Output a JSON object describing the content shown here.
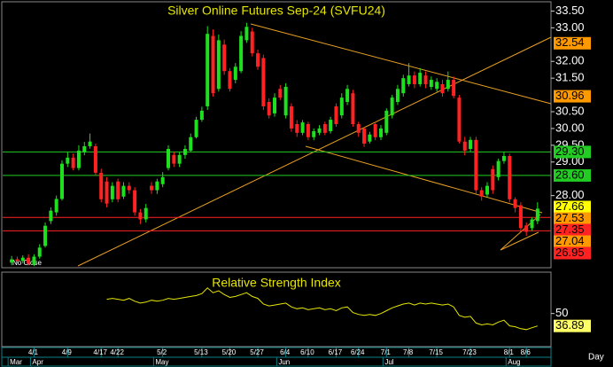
{
  "chart_data": [
    {
      "type": "candlestick",
      "title": "Silver Online Futures Sep-24 (SVFU24)",
      "status": "No Close",
      "x_label": "Day",
      "categories": [
        null,
        null,
        null,
        null,
        "4/1",
        null,
        null,
        null,
        null,
        null,
        "4/9",
        null,
        null,
        null,
        null,
        null,
        "4/17",
        null,
        null,
        "4/22",
        null,
        null,
        null,
        null,
        null,
        null,
        null,
        "5/2",
        null,
        null,
        null,
        null,
        null,
        null,
        "5/13",
        null,
        null,
        null,
        null,
        "5/20",
        null,
        null,
        null,
        null,
        "5/27",
        null,
        null,
        null,
        null,
        "6/4",
        null,
        null,
        null,
        "6/10",
        null,
        null,
        null,
        null,
        "6/17",
        null,
        null,
        null,
        "6/24",
        null,
        null,
        null,
        null,
        "7/1",
        null,
        null,
        null,
        "7/8",
        null,
        null,
        null,
        null,
        "7/15",
        null,
        null,
        null,
        null,
        null,
        "7/23",
        null,
        null,
        null,
        null,
        null,
        null,
        "8/1",
        null,
        null,
        "8/6",
        null,
        null
      ],
      "months": [
        "Mar",
        null,
        null,
        null,
        "Apr",
        null,
        null,
        null,
        null,
        null,
        null,
        null,
        null,
        null,
        null,
        null,
        null,
        null,
        null,
        null,
        null,
        null,
        null,
        null,
        null,
        null,
        "May",
        null,
        null,
        null,
        null,
        null,
        null,
        null,
        null,
        null,
        null,
        null,
        null,
        null,
        null,
        null,
        null,
        null,
        null,
        null,
        null,
        null,
        "Jun",
        null,
        null,
        null,
        null,
        null,
        null,
        null,
        null,
        null,
        null,
        null,
        null,
        null,
        null,
        null,
        null,
        null,
        null,
        "Jul",
        null,
        null,
        null,
        null,
        null,
        null,
        null,
        null,
        null,
        null,
        null,
        null,
        null,
        null,
        null,
        null,
        null,
        null,
        null,
        null,
        null,
        "Aug",
        null,
        null,
        null,
        null,
        null
      ],
      "open": [
        26.0,
        26.1,
        26.05,
        26.15,
        25.95,
        26.18,
        26.5,
        27.24,
        27.5,
        27.9,
        28.95,
        29.13,
        28.82,
        29.29,
        29.47,
        29.47,
        28.68,
        28.42,
        27.89,
        28.42,
        27.97,
        28.29,
        28.16,
        27.5,
        27.29,
        28.29,
        28.16,
        28.34,
        28.82,
        29.21,
        28.95,
        29.21,
        29.34,
        29.74,
        30.26,
        30.66,
        32.76,
        31.18,
        32.5,
        31.71,
        31.45,
        31.71,
        32.63,
        32.89,
        32.24,
        32.1,
        30.79,
        30.45,
        31.18,
        30.39,
        30.66,
        30.13,
        29.87,
        30.13,
        29.74,
        29.87,
        30.13,
        29.92,
        30.66,
        30.39,
        30.79,
        31.05,
        30.13,
        30.0,
        29.61,
        30.13,
        29.74,
        29.87,
        30.39,
        30.79,
        31.05,
        31.32,
        31.58,
        31.32,
        31.58,
        31.24,
        31.18,
        31.32,
        31.18,
        31.45,
        30.92,
        29.61,
        29.39,
        29.66,
        28.16,
        28.03,
        28.79,
        28.55,
        29.03,
        29.18,
        27.89,
        27.71,
        27.11,
        27.03,
        27.24
      ],
      "high": [
        26.2,
        26.18,
        26.22,
        26.25,
        26.25,
        26.55,
        27.2,
        27.65,
        28.0,
        29.05,
        29.3,
        29.25,
        29.5,
        29.6,
        29.85,
        29.55,
        28.8,
        28.55,
        28.4,
        28.5,
        28.4,
        28.4,
        28.25,
        27.6,
        27.75,
        28.4,
        28.5,
        28.7,
        29.5,
        29.3,
        29.3,
        29.5,
        29.85,
        30.35,
        30.65,
        33.05,
        32.95,
        32.8,
        32.65,
        31.8,
        31.95,
        32.9,
        33.15,
        33.0,
        32.35,
        32.2,
        30.9,
        31.05,
        31.3,
        31.35,
        30.75,
        30.25,
        30.25,
        30.2,
        30.0,
        30.1,
        30.2,
        30.35,
        30.75,
        31.05,
        31.3,
        31.15,
        30.2,
        30.05,
        29.9,
        30.2,
        30.1,
        30.6,
        31.0,
        31.3,
        31.6,
        31.95,
        31.7,
        31.8,
        31.7,
        31.55,
        31.5,
        31.45,
        31.7,
        31.55,
        31.0,
        29.75,
        29.75,
        29.75,
        28.25,
        28.4,
        28.9,
        29.1,
        29.3,
        29.25,
        27.95,
        27.8,
        27.2,
        27.35,
        27.8
      ],
      "low": [
        25.92,
        25.98,
        25.98,
        25.92,
        25.9,
        26.12,
        26.45,
        27.15,
        27.4,
        27.85,
        28.85,
        28.75,
        28.75,
        29.2,
        29.4,
        28.6,
        27.8,
        27.65,
        27.8,
        27.8,
        27.9,
        28.05,
        27.4,
        27.15,
        27.2,
        28.05,
        28.05,
        28.25,
        28.75,
        28.85,
        28.85,
        29.1,
        29.3,
        29.7,
        30.2,
        30.55,
        30.95,
        31.1,
        31.6,
        31.1,
        31.35,
        31.65,
        32.55,
        32.15,
        31.75,
        30.55,
        30.3,
        30.35,
        30.85,
        30.3,
        29.9,
        29.75,
        29.8,
        29.65,
        29.65,
        29.8,
        29.8,
        29.85,
        30.05,
        30.3,
        30.7,
        30.05,
        29.75,
        29.45,
        29.55,
        29.65,
        29.65,
        29.8,
        30.3,
        30.7,
        30.95,
        31.25,
        31.2,
        31.25,
        31.2,
        31.15,
        31.1,
        30.95,
        31.1,
        30.9,
        29.55,
        29.2,
        29.3,
        28.05,
        27.85,
        27.95,
        28.05,
        28.45,
        28.95,
        27.8,
        27.5,
        26.95,
        26.8,
        26.95,
        27.15
      ],
      "close": [
        26.1,
        26.05,
        26.15,
        25.98,
        26.18,
        26.45,
        27.1,
        27.55,
        27.9,
        28.95,
        29.13,
        28.82,
        29.34,
        29.47,
        29.61,
        28.68,
        27.89,
        27.76,
        28.29,
        27.89,
        28.29,
        28.16,
        27.5,
        27.29,
        27.63,
        28.16,
        28.42,
        28.55,
        29.39,
        28.95,
        29.21,
        29.39,
        29.74,
        30.26,
        30.53,
        32.82,
        31.05,
        32.63,
        31.71,
        31.18,
        31.84,
        32.76,
        33.03,
        32.24,
        31.84,
        30.66,
        30.39,
        30.92,
        30.92,
        31.24,
        30.0,
        29.87,
        30.18,
        29.74,
        29.92,
        30.0,
        29.87,
        30.26,
        30.13,
        30.92,
        31.18,
        30.13,
        29.87,
        29.55,
        29.82,
        29.74,
        30.0,
        30.53,
        30.92,
        31.18,
        31.5,
        31.58,
        31.32,
        31.66,
        31.32,
        31.45,
        31.39,
        31.05,
        31.45,
        30.97,
        29.61,
        29.34,
        29.66,
        28.16,
        27.97,
        28.29,
        28.16,
        29.03,
        29.18,
        27.89,
        27.63,
        27.03,
        26.92,
        27.29,
        27.61
      ],
      "up_color": "#1ee01e",
      "down_color": "#ff2222",
      "ylim": [
        25.85,
        33.75
      ],
      "yticks": [
        {
          "value": 33.5,
          "label": "33.50"
        },
        {
          "value": 33,
          "label": "33.00"
        },
        {
          "value": 32,
          "label": "32.00"
        },
        {
          "value": 31.5,
          "label": "31.50"
        },
        {
          "value": 30.5,
          "label": "30.50"
        },
        {
          "value": 30,
          "label": "30.00"
        },
        {
          "value": 29.5,
          "label": "29.50"
        },
        {
          "value": 29,
          "label": "29.00"
        },
        {
          "value": 28,
          "label": "28.00"
        }
      ],
      "markers": [
        {
          "value": 32.54,
          "color": "#ff9900",
          "line": false
        },
        {
          "value": 30.96,
          "color": "#ff9900",
          "line": false
        },
        {
          "value": 29.3,
          "label": "29.30",
          "color": "#22cc22",
          "line": true
        },
        {
          "value": 28.6,
          "label": "28.60",
          "color": "#22cc22",
          "line": true
        },
        {
          "value": 27.66,
          "color": "#ffff00",
          "line": false
        },
        {
          "value": 27.53,
          "color": "#ff9900",
          "line": false
        },
        {
          "value": 27.35,
          "color": "#ff2222",
          "line": true
        },
        {
          "value": 27.04,
          "color": "#ff9900",
          "line": false
        },
        {
          "value": 26.95,
          "color": "#ff2222",
          "line": true
        }
      ]
    },
    {
      "type": "line",
      "title": "Relative Strength Index",
      "color": "#e6e600",
      "values": [
        null,
        null,
        null,
        null,
        null,
        null,
        null,
        null,
        null,
        null,
        null,
        null,
        null,
        null,
        null,
        null,
        null,
        65,
        66,
        65,
        64,
        66,
        63,
        61,
        62,
        64,
        63,
        64,
        66,
        65,
        66,
        67,
        68,
        69,
        71,
        77,
        72,
        74,
        70,
        67,
        68,
        70,
        72,
        68,
        66,
        60,
        58,
        59,
        60,
        61,
        57,
        55,
        56,
        54,
        55,
        56,
        54,
        55,
        53,
        56,
        57,
        51,
        49,
        48,
        49,
        48,
        50,
        53,
        56,
        58,
        60,
        61,
        59,
        61,
        60,
        61,
        60,
        59,
        60,
        57,
        48,
        46,
        47,
        40,
        38,
        39,
        38,
        41,
        43,
        37,
        36,
        34,
        33,
        35,
        36.89
      ],
      "ylim": [
        16,
        89
      ],
      "yticks": [
        50
      ],
      "markers": [
        {
          "value": 36.89,
          "color": "#ffff66"
        }
      ]
    }
  ]
}
